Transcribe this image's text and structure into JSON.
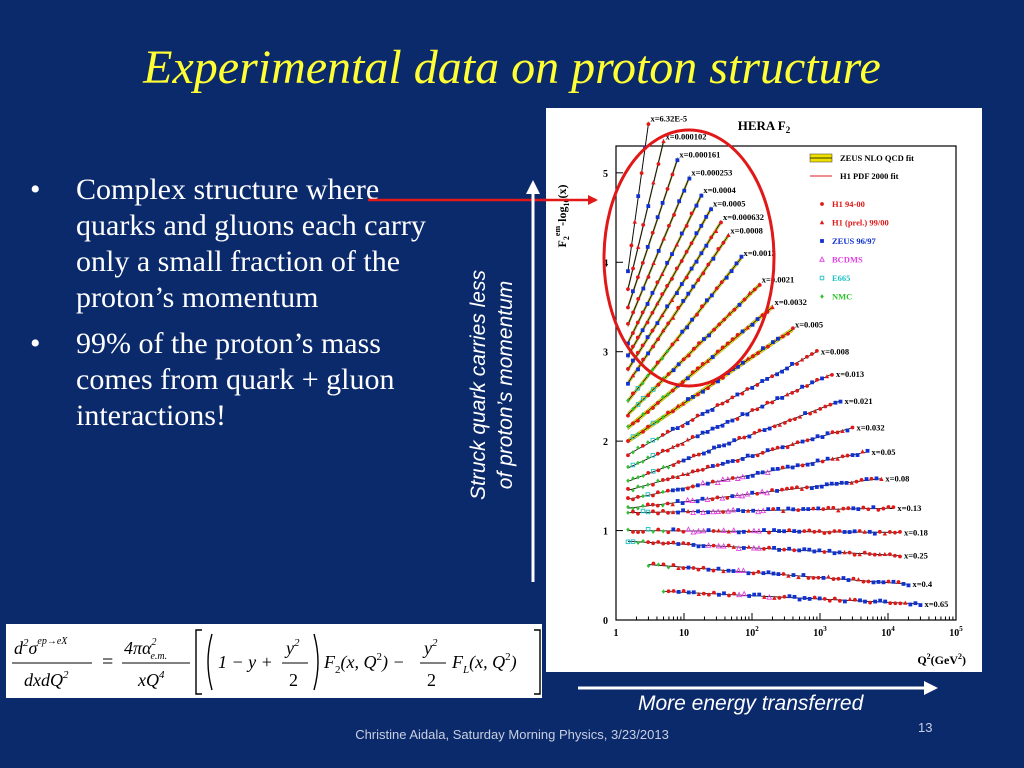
{
  "slide": {
    "title": "Experimental data on proton structure",
    "bullets": [
      "Complex structure where quarks and gluons each carry only a small fraction of the proton’s momentum",
      "99% of the proton’s mass comes from quark + gluon interactions!"
    ],
    "bullet_symbol": "•",
    "vertical_label_line1": "Struck quark carries less",
    "vertical_label_line2": "of proton’s momentum",
    "horizontal_label": "More energy transferred",
    "footer": "Christine Aidala, Saturday Morning Physics, 3/23/2013",
    "page_number": "13"
  },
  "formula": {
    "lhs_num_a": "d",
    "lhs_num_sup": "2",
    "lhs_num_sigma": "σ",
    "lhs_num_proc": "ep→eX",
    "lhs_den": "dxdQ",
    "lhs_den_sup": "2",
    "eq": "=",
    "pref_num": "4πα",
    "pref_num_sup": "2",
    "pref_num_sub": "e.m.",
    "pref_den": "xQ",
    "pref_den_sup": "4",
    "term_a": "1 − y +",
    "y2_num": "y",
    "y2_num_sup": "2",
    "y2_den": "2",
    "f2_name": "F",
    "f2_sub": "2",
    "f2_args": "(x, Q",
    "f2_args_sup": "2",
    "f2_args_end": ") −",
    "fl_name": "F",
    "fl_sub": "L",
    "fl_args": "(x, Q",
    "fl_args_sup": "2",
    "fl_args_end": ")"
  },
  "colors": {
    "background": "#0b2a6c",
    "title": "#ffff33",
    "arrows": "#ffffff",
    "highlight": "#e01818",
    "fit_band": "#f0e000",
    "h1": "#e01818",
    "zeus": "#1030d0",
    "bcdms": "#e040e0",
    "e665": "#20c0c0",
    "nmc": "#30c030"
  },
  "chart_data": {
    "type": "scatter",
    "title": "HERA F",
    "title_sub": "2",
    "ylabel": "F",
    "ylabel_sub": "2",
    "ylabel_sup": "em",
    "ylabel_rest": "-log",
    "ylabel_rest_sub": "10",
    "ylabel_rest_end": "(x)",
    "xlabel": "Q",
    "xlabel_sup": "2",
    "xlabel_end": "(GeV",
    "xlabel_end_sup": "2",
    "xlabel_close": ")",
    "x_scale": "log",
    "xlim": [
      1,
      100000
    ],
    "ylim": [
      0,
      5.3
    ],
    "x_tick_labels": [
      {
        "x": 1,
        "base": "1",
        "sup": ""
      },
      {
        "x": 10,
        "base": "10",
        "sup": ""
      },
      {
        "x": 100,
        "base": "10",
        "sup": "2"
      },
      {
        "x": 1000,
        "base": "10",
        "sup": "3"
      },
      {
        "x": 10000,
        "base": "10",
        "sup": "4"
      },
      {
        "x": 100000,
        "base": "10",
        "sup": "5"
      }
    ],
    "y_ticks": [
      0,
      1,
      2,
      3,
      4,
      5
    ],
    "legend": {
      "placement": "top-right",
      "fits": [
        {
          "label": "ZEUS NLO QCD fit",
          "style": "band",
          "color": "#f0e000"
        },
        {
          "label": "H1 PDF 2000 fit",
          "style": "line",
          "color": "#e01818"
        }
      ],
      "datasets": [
        {
          "label": "H1 94-00",
          "marker": "circle",
          "color": "#e01818"
        },
        {
          "label": "H1 (prel.) 99/00",
          "marker": "triangle",
          "color": "#e01818"
        },
        {
          "label": "ZEUS 96/97",
          "marker": "square",
          "color": "#1030d0"
        },
        {
          "label": "BCDMS",
          "marker": "triangle-open",
          "color": "#e040e0"
        },
        {
          "label": "E665",
          "marker": "square-open",
          "color": "#20c0c0"
        },
        {
          "label": "NMC",
          "marker": "diamond",
          "color": "#30c030"
        }
      ]
    },
    "series": [
      {
        "label": "x=6.32E-5",
        "q2_range": [
          1.5,
          3
        ],
        "y_range": [
          3.9,
          5.55
        ]
      },
      {
        "label": "x=0.000102",
        "q2_range": [
          1.5,
          5
        ],
        "y_range": [
          3.7,
          5.35
        ]
      },
      {
        "label": "x=0.000161",
        "q2_range": [
          1.5,
          8
        ],
        "y_range": [
          3.5,
          5.15
        ]
      },
      {
        "label": "x=0.000253",
        "q2_range": [
          1.5,
          12
        ],
        "y_range": [
          3.3,
          4.95
        ]
      },
      {
        "label": "x=0.0004",
        "q2_range": [
          1.5,
          18
        ],
        "y_range": [
          3.1,
          4.75
        ]
      },
      {
        "label": "x=0.0005",
        "q2_range": [
          1.5,
          25
        ],
        "y_range": [
          2.95,
          4.6
        ]
      },
      {
        "label": "x=0.000632",
        "q2_range": [
          1.5,
          35
        ],
        "y_range": [
          2.8,
          4.45
        ]
      },
      {
        "label": "x=0.0008",
        "q2_range": [
          1.5,
          45
        ],
        "y_range": [
          2.65,
          4.3
        ]
      },
      {
        "label": "x=0.0013",
        "q2_range": [
          1.5,
          70
        ],
        "y_range": [
          2.45,
          4.05
        ]
      },
      {
        "label": "x=0.0021",
        "q2_range": [
          1.5,
          130
        ],
        "y_range": [
          2.3,
          3.75
        ]
      },
      {
        "label": "x=0.0032",
        "q2_range": [
          1.5,
          200
        ],
        "y_range": [
          2.15,
          3.5
        ]
      },
      {
        "label": "x=0.005",
        "q2_range": [
          1.5,
          400
        ],
        "y_range": [
          2.0,
          3.25
        ]
      },
      {
        "label": "x=0.008",
        "q2_range": [
          1.5,
          900
        ],
        "y_range": [
          1.85,
          3.0
        ]
      },
      {
        "label": "x=0.013",
        "q2_range": [
          1.5,
          1500
        ],
        "y_range": [
          1.7,
          2.75
        ]
      },
      {
        "label": "x=0.021",
        "q2_range": [
          1.5,
          2000
        ],
        "y_range": [
          1.55,
          2.45
        ]
      },
      {
        "label": "x=0.032",
        "q2_range": [
          1.5,
          3000
        ],
        "y_range": [
          1.45,
          2.15
        ]
      },
      {
        "label": "x=0.05",
        "q2_range": [
          1.5,
          5000
        ],
        "y_range": [
          1.35,
          1.88
        ]
      },
      {
        "label": "x=0.08",
        "q2_range": [
          1.5,
          8000
        ],
        "y_range": [
          1.25,
          1.58
        ]
      },
      {
        "label": "x=0.13",
        "q2_range": [
          1.5,
          12000
        ],
        "y_range": [
          1.2,
          1.25
        ]
      },
      {
        "label": "x=0.18",
        "q2_range": [
          1.5,
          15000
        ],
        "y_range": [
          1.0,
          0.98
        ]
      },
      {
        "label": "x=0.25",
        "q2_range": [
          1.5,
          15000
        ],
        "y_range": [
          0.88,
          0.72
        ]
      },
      {
        "label": "x=0.4",
        "q2_range": [
          3,
          20000
        ],
        "y_range": [
          0.62,
          0.4
        ]
      },
      {
        "label": "x=0.65",
        "q2_range": [
          5,
          30000
        ],
        "y_range": [
          0.32,
          0.18
        ]
      }
    ]
  }
}
